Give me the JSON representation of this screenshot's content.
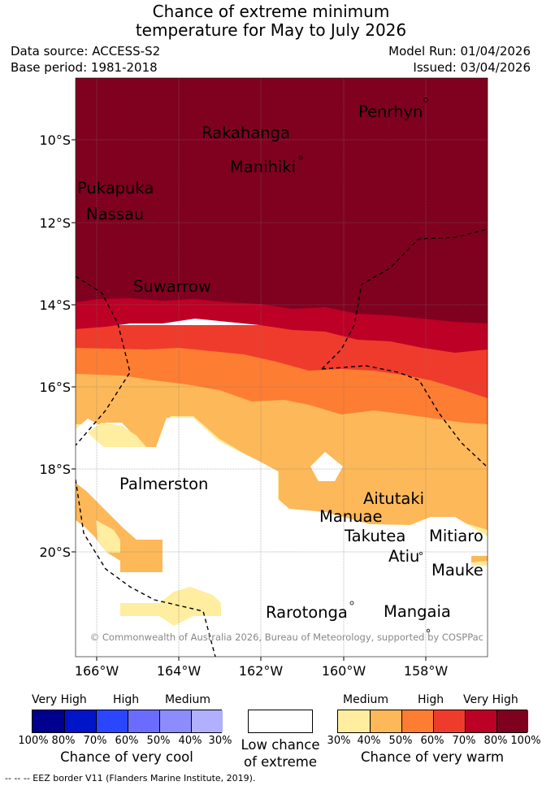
{
  "title_line1": "Chance of extreme minimum",
  "title_line2": "temperature for May to July 2026",
  "data_source": "Data source: ACCESS-S2",
  "base_period": "Base period: 1981-2018",
  "model_run": "Model Run: 01/04/2026",
  "issued": "Issued: 03/04/2026",
  "copyright": "© Commonwealth of Australia 2026, Bureau of Meteorology, supported by COSPPac",
  "lat_labels": [
    "10°S",
    "12°S",
    "14°S",
    "16°S",
    "18°S",
    "20°S"
  ],
  "lon_labels": [
    "166°W",
    "164°W",
    "162°W",
    "160°W",
    "158°W"
  ],
  "places": [
    "Penrhyn",
    "Rakahanga",
    "Manihiki",
    "Pukapuka",
    "Nassau",
    "Suwarrow",
    "Palmerston",
    "Aitutaki",
    "Manuae",
    "Takutea",
    "Mitiaro",
    "Atiu",
    "Mauke",
    "Rarotonga",
    "Mangaia"
  ],
  "legend_cool": {
    "headers": [
      "Very High",
      "High",
      "Medium"
    ],
    "ticks": [
      "100%",
      "80%",
      "70%",
      "60%",
      "50%",
      "40%",
      "30%"
    ],
    "colors": [
      "#00008f",
      "#0014c8",
      "#2a46ff",
      "#6a6cff",
      "#8c8cff",
      "#b0b0ff"
    ],
    "caption": "Chance of very cool"
  },
  "legend_neutral": {
    "line1": "Low chance",
    "line2": "of extreme"
  },
  "legend_warm": {
    "headers": [
      "Medium",
      "High",
      "Very High"
    ],
    "ticks": [
      "30%",
      "40%",
      "50%",
      "60%",
      "70%",
      "80%",
      "100%"
    ],
    "colors": [
      "#ffeda0",
      "#fdb859",
      "#fd7d33",
      "#ef3b2c",
      "#bd0026",
      "#800020"
    ],
    "caption": "Chance of very warm"
  },
  "footnote": "-- -- -- EEZ border V11 (Flanders Marine Institute, 2019)."
}
